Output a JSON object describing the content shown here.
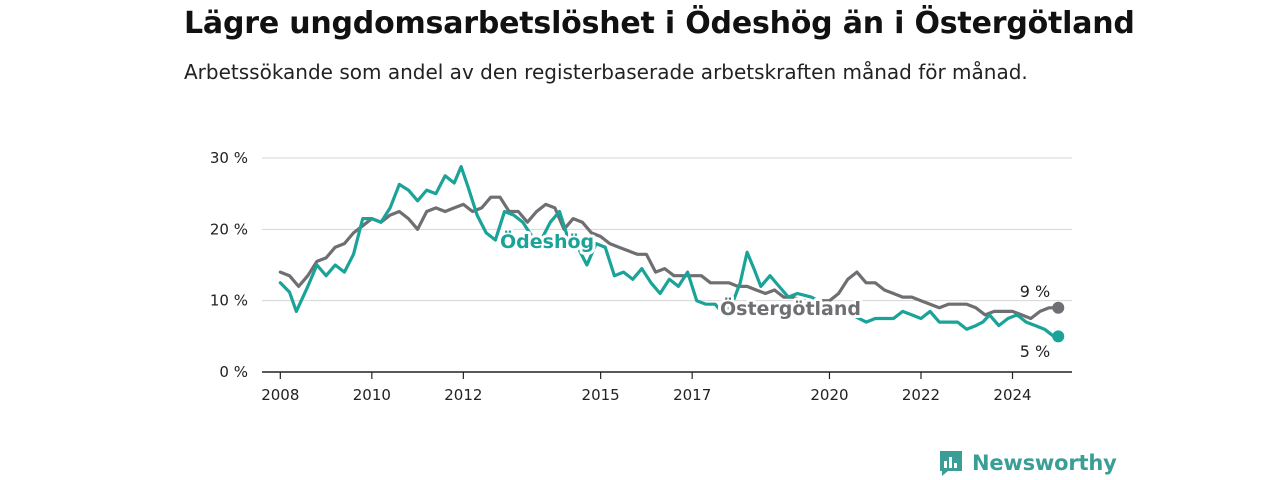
{
  "header": {
    "title": "Lägre ungdomsarbetslöshet i Ödeshög än i Östergötland",
    "subtitle": "Arbetssökande som andel av den registerbaserade arbetskraften månad för månad."
  },
  "brand": {
    "name": "Newsworthy",
    "icon": "newsworthy-logo-icon",
    "color": "#3a9e96"
  },
  "colors": {
    "odeshog": "#1aa399",
    "ostergotland": "#6f6f73",
    "grid": "#d4d4d4",
    "axis": "#222222"
  },
  "chart_data": {
    "type": "line",
    "title": "Lägre ungdomsarbetslöshet i Ödeshög än i Östergötland",
    "subtitle": "Arbetssökande som andel av den registerbaserade arbetskraften månad för månad.",
    "xlabel": "",
    "ylabel": "",
    "xlim": [
      2007.6,
      2025.3
    ],
    "ylim": [
      0,
      30
    ],
    "yticks": [
      0,
      10,
      20,
      30
    ],
    "ytick_labels": [
      "0 %",
      "10 %",
      "20 %",
      "30 %"
    ],
    "xticks": [
      2008,
      2010,
      2012,
      2015,
      2017,
      2020,
      2022,
      2024
    ],
    "xtick_labels": [
      "2008",
      "2010",
      "2012",
      "2015",
      "2017",
      "2020",
      "2022",
      "2024"
    ],
    "grid": true,
    "legend": "inline labels",
    "end_labels": [
      "9 %",
      "5 %"
    ],
    "series": [
      {
        "name": "Ödeshög",
        "color": "#1aa399",
        "points": [
          [
            2008.0,
            12.5
          ],
          [
            2008.2,
            11.2
          ],
          [
            2008.35,
            8.5
          ],
          [
            2008.6,
            12.0
          ],
          [
            2008.8,
            15.0
          ],
          [
            2009.0,
            13.5
          ],
          [
            2009.2,
            15.0
          ],
          [
            2009.4,
            14.0
          ],
          [
            2009.6,
            16.5
          ],
          [
            2009.8,
            21.5
          ],
          [
            2010.0,
            21.5
          ],
          [
            2010.2,
            21.0
          ],
          [
            2010.4,
            23.0
          ],
          [
            2010.6,
            26.3
          ],
          [
            2010.8,
            25.5
          ],
          [
            2011.0,
            24.0
          ],
          [
            2011.2,
            25.5
          ],
          [
            2011.4,
            25.0
          ],
          [
            2011.6,
            27.5
          ],
          [
            2011.8,
            26.5
          ],
          [
            2011.95,
            28.8
          ],
          [
            2012.1,
            26.0
          ],
          [
            2012.3,
            22.0
          ],
          [
            2012.5,
            19.5
          ],
          [
            2012.7,
            18.5
          ],
          [
            2012.9,
            22.5
          ],
          [
            2013.1,
            22.0
          ],
          [
            2013.3,
            21.0
          ],
          [
            2013.5,
            19.0
          ],
          [
            2013.7,
            18.5
          ],
          [
            2013.9,
            21.0
          ],
          [
            2014.1,
            22.5
          ],
          [
            2014.3,
            18.5
          ],
          [
            2014.5,
            17.5
          ],
          [
            2014.7,
            15.0
          ],
          [
            2014.9,
            18.0
          ],
          [
            2015.1,
            17.5
          ],
          [
            2015.3,
            13.5
          ],
          [
            2015.5,
            14.0
          ],
          [
            2015.7,
            13.0
          ],
          [
            2015.9,
            14.5
          ],
          [
            2016.1,
            12.5
          ],
          [
            2016.3,
            11.0
          ],
          [
            2016.5,
            13.0
          ],
          [
            2016.7,
            12.0
          ],
          [
            2016.9,
            14.0
          ],
          [
            2017.1,
            10.0
          ],
          [
            2017.3,
            9.5
          ],
          [
            2017.5,
            9.5
          ],
          [
            2017.7,
            8.0
          ],
          [
            2017.9,
            10.0
          ],
          [
            2018.05,
            12.5
          ],
          [
            2018.2,
            16.8
          ],
          [
            2018.35,
            14.5
          ],
          [
            2018.5,
            12.0
          ],
          [
            2018.7,
            13.5
          ],
          [
            2018.9,
            12.0
          ],
          [
            2019.1,
            10.5
          ],
          [
            2019.3,
            11.0
          ],
          [
            2019.6,
            10.5
          ],
          [
            2019.9,
            9.5
          ],
          [
            2020.1,
            8.0
          ],
          [
            2020.5,
            8.0
          ],
          [
            2020.8,
            7.0
          ],
          [
            2021.0,
            7.5
          ],
          [
            2021.2,
            7.5
          ],
          [
            2021.4,
            7.5
          ],
          [
            2021.6,
            8.5
          ],
          [
            2021.8,
            8.0
          ],
          [
            2022.0,
            7.5
          ],
          [
            2022.2,
            8.5
          ],
          [
            2022.4,
            7.0
          ],
          [
            2022.6,
            7.0
          ],
          [
            2022.8,
            7.0
          ],
          [
            2023.0,
            6.0
          ],
          [
            2023.2,
            6.5
          ],
          [
            2023.35,
            7.0
          ],
          [
            2023.5,
            8.0
          ],
          [
            2023.7,
            6.5
          ],
          [
            2023.9,
            7.5
          ],
          [
            2024.1,
            8.0
          ],
          [
            2024.3,
            7.0
          ],
          [
            2024.5,
            6.5
          ],
          [
            2024.7,
            6.0
          ],
          [
            2024.9,
            5.0
          ],
          [
            2025.0,
            5.0
          ]
        ]
      },
      {
        "name": "Östergötland",
        "color": "#6f6f73",
        "points": [
          [
            2008.0,
            14.0
          ],
          [
            2008.2,
            13.5
          ],
          [
            2008.4,
            12.0
          ],
          [
            2008.6,
            13.5
          ],
          [
            2008.8,
            15.5
          ],
          [
            2009.0,
            16.0
          ],
          [
            2009.2,
            17.5
          ],
          [
            2009.4,
            18.0
          ],
          [
            2009.6,
            19.5
          ],
          [
            2009.8,
            20.5
          ],
          [
            2010.0,
            21.5
          ],
          [
            2010.2,
            21.0
          ],
          [
            2010.4,
            22.0
          ],
          [
            2010.6,
            22.5
          ],
          [
            2010.8,
            21.5
          ],
          [
            2011.0,
            20.0
          ],
          [
            2011.2,
            22.5
          ],
          [
            2011.4,
            23.0
          ],
          [
            2011.6,
            22.5
          ],
          [
            2011.8,
            23.0
          ],
          [
            2012.0,
            23.5
          ],
          [
            2012.2,
            22.5
          ],
          [
            2012.4,
            23.0
          ],
          [
            2012.6,
            24.5
          ],
          [
            2012.8,
            24.5
          ],
          [
            2013.0,
            22.5
          ],
          [
            2013.2,
            22.5
          ],
          [
            2013.4,
            21.0
          ],
          [
            2013.6,
            22.5
          ],
          [
            2013.8,
            23.5
          ],
          [
            2014.0,
            23.0
          ],
          [
            2014.2,
            20.0
          ],
          [
            2014.4,
            21.5
          ],
          [
            2014.6,
            21.0
          ],
          [
            2014.8,
            19.5
          ],
          [
            2015.0,
            19.0
          ],
          [
            2015.2,
            18.0
          ],
          [
            2015.4,
            17.5
          ],
          [
            2015.6,
            17.0
          ],
          [
            2015.8,
            16.5
          ],
          [
            2016.0,
            16.5
          ],
          [
            2016.2,
            14.0
          ],
          [
            2016.4,
            14.5
          ],
          [
            2016.6,
            13.5
          ],
          [
            2016.8,
            13.5
          ],
          [
            2017.0,
            13.5
          ],
          [
            2017.2,
            13.5
          ],
          [
            2017.4,
            12.5
          ],
          [
            2017.6,
            12.5
          ],
          [
            2017.8,
            12.5
          ],
          [
            2018.0,
            12.0
          ],
          [
            2018.2,
            12.0
          ],
          [
            2018.4,
            11.5
          ],
          [
            2018.6,
            11.0
          ],
          [
            2018.8,
            11.5
          ],
          [
            2019.0,
            10.5
          ],
          [
            2019.2,
            10.5
          ],
          [
            2019.4,
            10.0
          ],
          [
            2019.6,
            10.0
          ],
          [
            2019.8,
            10.0
          ],
          [
            2020.0,
            10.0
          ],
          [
            2020.2,
            11.0
          ],
          [
            2020.4,
            13.0
          ],
          [
            2020.6,
            14.0
          ],
          [
            2020.8,
            12.5
          ],
          [
            2021.0,
            12.5
          ],
          [
            2021.2,
            11.5
          ],
          [
            2021.4,
            11.0
          ],
          [
            2021.6,
            10.5
          ],
          [
            2021.8,
            10.5
          ],
          [
            2022.0,
            10.0
          ],
          [
            2022.2,
            9.5
          ],
          [
            2022.4,
            9.0
          ],
          [
            2022.6,
            9.5
          ],
          [
            2022.8,
            9.5
          ],
          [
            2023.0,
            9.5
          ],
          [
            2023.2,
            9.0
          ],
          [
            2023.4,
            8.0
          ],
          [
            2023.6,
            8.5
          ],
          [
            2023.8,
            8.5
          ],
          [
            2024.0,
            8.5
          ],
          [
            2024.2,
            8.0
          ],
          [
            2024.4,
            7.5
          ],
          [
            2024.6,
            8.5
          ],
          [
            2024.8,
            9.0
          ],
          [
            2025.0,
            9.0
          ]
        ]
      }
    ]
  }
}
